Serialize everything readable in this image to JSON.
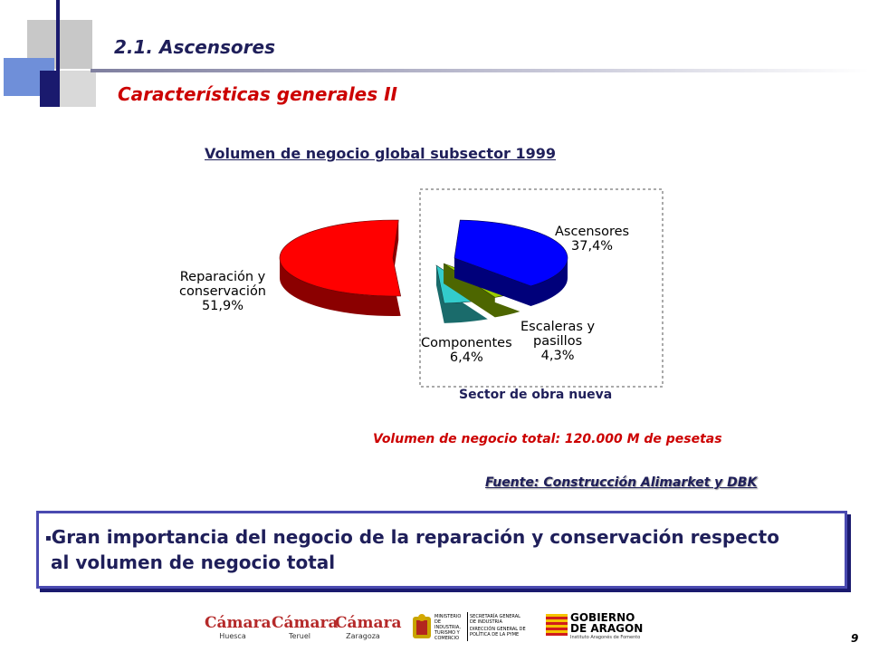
{
  "header": {
    "section_title": "2.1. Ascensores",
    "subtitle": "Características generales II"
  },
  "chart": {
    "title": "Volumen de negocio global subsector 1999",
    "sector_caption": "Sector de obra nueva",
    "total": "Volumen de negocio total: 120.000 M de pesetas",
    "source": "Fuente: Construcción Alimarket y DBK"
  },
  "chart_data": {
    "type": "pie",
    "labels": [
      "Reparación y conservación",
      "Ascensores",
      "Escaleras y pasillos",
      "Componentes"
    ],
    "values": [
      51.9,
      37.4,
      4.3,
      6.4
    ],
    "value_labels": [
      "51,9%",
      "37,4%",
      "4,3%",
      "6,4%"
    ],
    "label_lines": [
      [
        "Reparación y",
        "conservación",
        "51,9%"
      ],
      [
        "Ascensores",
        "37,4%"
      ],
      [
        "Escaleras y",
        "pasillos",
        "4,3%"
      ],
      [
        "Componentes",
        "6,4%"
      ]
    ],
    "colors": [
      "#ff0000",
      "#0000ff",
      "#99cc00",
      "#33cccc"
    ],
    "dark_colors": [
      "#8b0000",
      "#00007a",
      "#4d6600",
      "#1a6b6b"
    ]
  },
  "callout": {
    "text_line1": "Gran importancia del negocio de la reparación y conservación respecto",
    "text_line2": "al volumen de negocio total"
  },
  "footer": {
    "logos": [
      {
        "name": "Cámara",
        "sub": "Huesca"
      },
      {
        "name": "Cámara",
        "sub": "Teruel"
      },
      {
        "name": "Cámara",
        "sub": "Zaragoza"
      }
    ],
    "ministry": "MINISTERIO DE INDUSTRIA, TURISMO Y COMERCIO",
    "secretaria": "SECRETARÍA GENERAL DE INDUSTRIA",
    "direccion": "DIRECCIÓN GENERAL DE POLÍTICA DE LA PYME",
    "gobierno_line1": "GOBIERNO",
    "gobierno_line2": "DE ARAGON",
    "instituto": "Instituto Aragonés de Fomento",
    "page_number": "9"
  }
}
